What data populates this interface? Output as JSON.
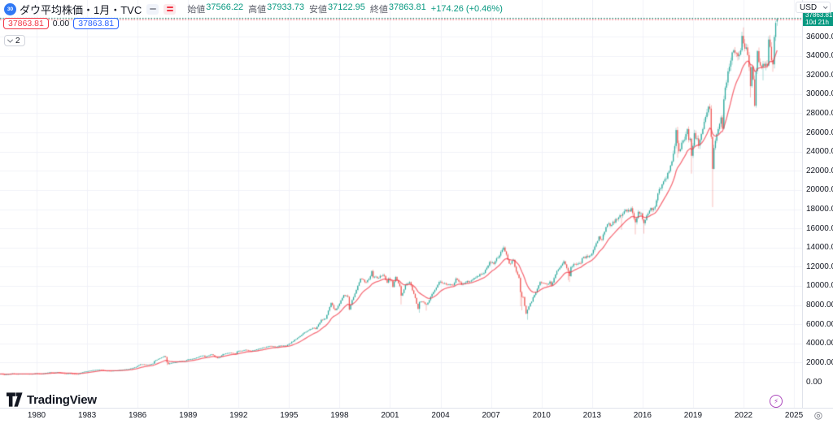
{
  "header": {
    "symbol_logo_text": "30",
    "title": "ダウ平均株価・1月・TVC",
    "ohlc": {
      "open_label": "始値",
      "open": "37566.22",
      "high_label": "高値",
      "high": "37933.73",
      "low_label": "安値",
      "low": "37122.95",
      "close_label": "終値",
      "close": "37863.81",
      "change": "+174.26 (+0.46%)"
    },
    "price_chips": {
      "red": "37863.81",
      "middle": "0.00",
      "blue": "37863.81"
    },
    "collapse_count": "2"
  },
  "price_axis": {
    "currency": "USD",
    "countdown_price": "37863.81",
    "countdown_time": "10d 21h",
    "labels": [
      "36000.00",
      "34000.00",
      "32000.00",
      "30000.00",
      "28000.00",
      "26000.00",
      "24000.00",
      "22000.00",
      "20000.00",
      "18000.00",
      "16000.00",
      "14000.00",
      "12000.00",
      "10000.00",
      "8000.00",
      "6000.00",
      "4000.00",
      "2000.00",
      "0.00"
    ]
  },
  "time_axis": {
    "labels": [
      "1980",
      "1983",
      "1986",
      "1989",
      "1992",
      "1995",
      "1998",
      "2001",
      "2004",
      "2007",
      "2010",
      "2013",
      "2016",
      "2019",
      "2022",
      "2025"
    ]
  },
  "footer": {
    "brand": "TradingView"
  },
  "colors": {
    "up": "#26a69a",
    "down": "#ef5350",
    "ma_line": "rgba(242,54,69,0.72)",
    "grid": "#f0f2f8",
    "price_line_teal": "#089981",
    "price_line_red": "#f23645",
    "countdown_bg": "#089981",
    "accent_blue": "#2962ff",
    "text": "#131722"
  },
  "chart_data": {
    "type": "candlestick",
    "symbol": "ダウ平均株価 (TVC)",
    "timeframe": "1月",
    "last_candle": {
      "open": 37566.22,
      "high": 37933.73,
      "low": 37122.95,
      "close": 37863.81
    },
    "current_price": 37863.81,
    "x_domain_years": [
      1977.83,
      2024.09
    ],
    "y_axis": {
      "min": 0,
      "max": 38000,
      "tick_step": 2000
    },
    "x_ticks_years": [
      1980,
      1983,
      1986,
      1989,
      1992,
      1995,
      1998,
      2001,
      2004,
      2007,
      2010,
      2013,
      2016,
      2019,
      2022,
      2025
    ],
    "ma_line": {
      "kind": "ema",
      "period": 16
    },
    "monthly_close_anchors": [
      [
        1977.88,
        820
      ],
      [
        1978.08,
        742
      ],
      [
        1978.58,
        862
      ],
      [
        1978.83,
        790
      ],
      [
        1979.0,
        839
      ],
      [
        1979.75,
        816
      ],
      [
        1980.0,
        876
      ],
      [
        1980.25,
        817
      ],
      [
        1980.83,
        993
      ],
      [
        1981.0,
        947
      ],
      [
        1981.25,
        998
      ],
      [
        1981.67,
        850
      ],
      [
        1982.0,
        871
      ],
      [
        1982.17,
        822
      ],
      [
        1982.5,
        809
      ],
      [
        1982.58,
        901
      ],
      [
        1982.83,
        1039
      ],
      [
        1983.33,
        1200
      ],
      [
        1983.83,
        1276
      ],
      [
        1984.08,
        1155
      ],
      [
        1984.42,
        1132
      ],
      [
        1984.92,
        1212
      ],
      [
        1985.5,
        1335
      ],
      [
        1985.92,
        1547
      ],
      [
        1986.17,
        1819
      ],
      [
        1986.67,
        1768
      ],
      [
        1986.92,
        1896
      ],
      [
        1987.0,
        2158
      ],
      [
        1987.58,
        2663
      ],
      [
        1987.67,
        2596
      ],
      [
        1987.75,
        1994
      ],
      [
        1987.83,
        1834
      ],
      [
        1987.92,
        1939
      ],
      [
        1988.25,
        2032
      ],
      [
        1988.5,
        2129
      ],
      [
        1988.83,
        2169
      ],
      [
        1989.0,
        2342
      ],
      [
        1989.42,
        2440
      ],
      [
        1989.75,
        2693
      ],
      [
        1989.92,
        2753
      ],
      [
        1990.0,
        2590
      ],
      [
        1990.42,
        2881
      ],
      [
        1990.58,
        2614
      ],
      [
        1990.75,
        2442
      ],
      [
        1990.92,
        2634
      ],
      [
        1991.08,
        2882
      ],
      [
        1991.5,
        3025
      ],
      [
        1991.83,
        2895
      ],
      [
        1991.92,
        3169
      ],
      [
        1992.42,
        3318
      ],
      [
        1992.75,
        3226
      ],
      [
        1992.92,
        3301
      ],
      [
        1993.92,
        3754
      ],
      [
        1994.17,
        3636
      ],
      [
        1994.5,
        3765
      ],
      [
        1994.83,
        3739
      ],
      [
        1994.92,
        3834
      ],
      [
        1995.42,
        4465
      ],
      [
        1995.92,
        5117
      ],
      [
        1996.42,
        5655
      ],
      [
        1996.58,
        5529
      ],
      [
        1996.92,
        6448
      ],
      [
        1997.17,
        6584
      ],
      [
        1997.5,
        8223
      ],
      [
        1997.67,
        7622
      ],
      [
        1997.75,
        7442
      ],
      [
        1997.92,
        7908
      ],
      [
        1998.25,
        9063
      ],
      [
        1998.5,
        8883
      ],
      [
        1998.58,
        7539
      ],
      [
        1998.75,
        8592
      ],
      [
        1998.92,
        9181
      ],
      [
        1999.25,
        10789
      ],
      [
        1999.58,
        10337
      ],
      [
        1999.75,
        10730
      ],
      [
        1999.92,
        11497
      ],
      [
        2000.0,
        10941
      ],
      [
        2000.17,
        10922
      ],
      [
        2000.25,
        10734
      ],
      [
        2000.58,
        11215
      ],
      [
        2000.83,
        10414
      ],
      [
        2000.92,
        10787
      ],
      [
        2001.08,
        10495
      ],
      [
        2001.17,
        9879
      ],
      [
        2001.33,
        10912
      ],
      [
        2001.58,
        9950
      ],
      [
        2001.67,
        8848
      ],
      [
        2001.92,
        10022
      ],
      [
        2002.17,
        10404
      ],
      [
        2002.5,
        8737
      ],
      [
        2002.67,
        7592
      ],
      [
        2002.75,
        8397
      ],
      [
        2002.92,
        8342
      ],
      [
        2003.17,
        7992
      ],
      [
        2003.42,
        8850
      ],
      [
        2003.92,
        10454
      ],
      [
        2004.25,
        10226
      ],
      [
        2004.75,
        10027
      ],
      [
        2004.92,
        10783
      ],
      [
        2005.25,
        10193
      ],
      [
        2005.58,
        10482
      ],
      [
        2005.75,
        10440
      ],
      [
        2005.92,
        10718
      ],
      [
        2006.33,
        11168
      ],
      [
        2006.5,
        11186
      ],
      [
        2006.92,
        12463
      ],
      [
        2007.17,
        12354
      ],
      [
        2007.5,
        13212
      ],
      [
        2007.75,
        13930
      ],
      [
        2007.92,
        13265
      ],
      [
        2008.08,
        12266
      ],
      [
        2008.33,
        12638
      ],
      [
        2008.5,
        11378
      ],
      [
        2008.67,
        10851
      ],
      [
        2008.75,
        9325
      ],
      [
        2008.83,
        8829
      ],
      [
        2008.92,
        8776
      ],
      [
        2009.08,
        7063
      ],
      [
        2009.17,
        7609
      ],
      [
        2009.42,
        8447
      ],
      [
        2009.75,
        9713
      ],
      [
        2009.92,
        10428
      ],
      [
        2010.08,
        10325
      ],
      [
        2010.33,
        10137
      ],
      [
        2010.5,
        10466
      ],
      [
        2010.58,
        10015
      ],
      [
        2010.92,
        11578
      ],
      [
        2011.33,
        12570
      ],
      [
        2011.58,
        11614
      ],
      [
        2011.67,
        10913
      ],
      [
        2011.75,
        11955
      ],
      [
        2011.92,
        12218
      ],
      [
        2012.33,
        12393
      ],
      [
        2012.42,
        12880
      ],
      [
        2012.75,
        13096
      ],
      [
        2012.92,
        13104
      ],
      [
        2013.42,
        15116
      ],
      [
        2013.58,
        14810
      ],
      [
        2013.92,
        16576
      ],
      [
        2014.08,
        16322
      ],
      [
        2014.58,
        17098
      ],
      [
        2014.75,
        17391
      ],
      [
        2014.92,
        17823
      ],
      [
        2015.17,
        17776
      ],
      [
        2015.33,
        18011
      ],
      [
        2015.58,
        16528
      ],
      [
        2015.75,
        17664
      ],
      [
        2015.92,
        17425
      ],
      [
        2016.08,
        16517
      ],
      [
        2016.42,
        17930
      ],
      [
        2016.75,
        18142
      ],
      [
        2016.92,
        19763
      ],
      [
        2017.33,
        21009
      ],
      [
        2017.67,
        22405
      ],
      [
        2017.92,
        24719
      ],
      [
        2018.0,
        26149
      ],
      [
        2018.08,
        25029
      ],
      [
        2018.17,
        24103
      ],
      [
        2018.5,
        25415
      ],
      [
        2018.67,
        26458
      ],
      [
        2018.75,
        25116
      ],
      [
        2018.83,
        25538
      ],
      [
        2018.92,
        23327
      ],
      [
        2019.08,
        25916
      ],
      [
        2019.33,
        24815
      ],
      [
        2019.58,
        26403
      ],
      [
        2019.92,
        28538
      ],
      [
        2020.0,
        28256
      ],
      [
        2020.08,
        25409
      ],
      [
        2020.17,
        21917
      ],
      [
        2020.25,
        24346
      ],
      [
        2020.42,
        25813
      ],
      [
        2020.67,
        27782
      ],
      [
        2020.75,
        26502
      ],
      [
        2020.83,
        29639
      ],
      [
        2020.92,
        30606
      ],
      [
        2021.17,
        32982
      ],
      [
        2021.33,
        34529
      ],
      [
        2021.75,
        33844
      ],
      [
        2021.83,
        34484
      ],
      [
        2021.92,
        36338
      ],
      [
        2022.0,
        35132
      ],
      [
        2022.17,
        34678
      ],
      [
        2022.33,
        32990
      ],
      [
        2022.42,
        30775
      ],
      [
        2022.5,
        32845
      ],
      [
        2022.58,
        31510
      ],
      [
        2022.67,
        28726
      ],
      [
        2022.75,
        32733
      ],
      [
        2022.83,
        34590
      ],
      [
        2022.92,
        33147
      ],
      [
        2023.08,
        32657
      ],
      [
        2023.17,
        33274
      ],
      [
        2023.42,
        32908
      ],
      [
        2023.5,
        35560
      ],
      [
        2023.58,
        34722
      ],
      [
        2023.67,
        33508
      ],
      [
        2023.75,
        33053
      ],
      [
        2023.83,
        35951
      ],
      [
        2023.92,
        37690
      ],
      [
        2024.0,
        37863.81
      ]
    ],
    "wick_overrides": [
      {
        "t": 1987.75,
        "low": 1738
      },
      {
        "t": 2001.67,
        "low": 8062
      },
      {
        "t": 2002.75,
        "low": 7197
      },
      {
        "t": 2003.17,
        "low": 7416
      },
      {
        "t": 2007.75,
        "high": 14198
      },
      {
        "t": 2008.75,
        "low": 7882
      },
      {
        "t": 2008.83,
        "low": 7449
      },
      {
        "t": 2009.17,
        "low": 6470
      },
      {
        "t": 2010.33,
        "low": 9870
      },
      {
        "t": 2011.58,
        "low": 10604
      },
      {
        "t": 2011.67,
        "low": 10404
      },
      {
        "t": 2014.75,
        "low": 15855
      },
      {
        "t": 2015.58,
        "low": 15370
      },
      {
        "t": 2016.08,
        "low": 15451
      },
      {
        "t": 2018.08,
        "low": 23360
      },
      {
        "t": 2018.92,
        "low": 21712
      },
      {
        "t": 2020.17,
        "low": 18214
      },
      {
        "t": 2022.0,
        "high": 36952
      },
      {
        "t": 2022.42,
        "low": 29653
      },
      {
        "t": 2023.17,
        "low": 31430
      },
      {
        "t": 2023.75,
        "low": 32327
      }
    ]
  }
}
